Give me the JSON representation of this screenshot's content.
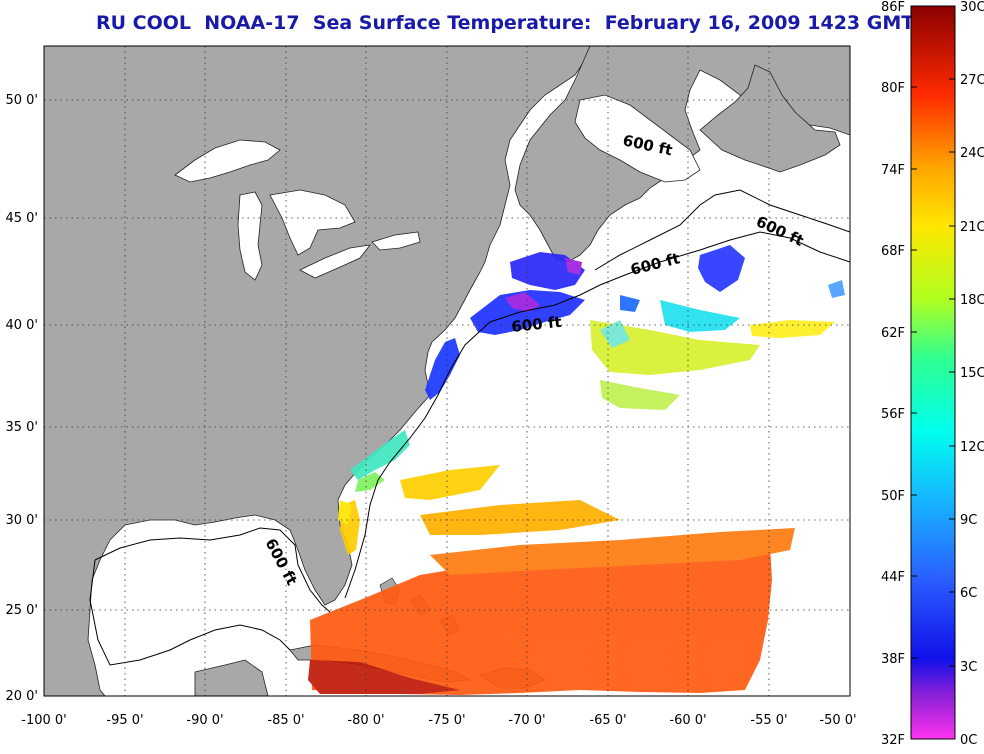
{
  "title": "RU COOL  NOAA-17  Sea Surface Temperature:  February 16, 2009 1423 GMT",
  "axes": {
    "lon_labels": [
      "-100 0'",
      "-95 0'",
      "-90 0'",
      "-85 0'",
      "-80 0'",
      "-75 0'",
      "-70 0'",
      "-65 0'",
      "-60 0'",
      "-55 0'",
      "-50 0'"
    ],
    "lat_labels": [
      "20 0'",
      "25 0'",
      "30 0'",
      "35 0'",
      "40 0'",
      "45 0'",
      "50 0'"
    ]
  },
  "contour_labels": [
    "600 ft",
    "600 ft",
    "600 ft",
    "600 ft",
    "600 ft"
  ],
  "colorbar": {
    "fahrenheit": [
      "86F",
      "80F",
      "74F",
      "68F",
      "62F",
      "56F",
      "50F",
      "44F",
      "38F",
      "32F"
    ],
    "celsius": [
      "30C",
      "27C",
      "24C",
      "21C",
      "18C",
      "15C",
      "12C",
      "9C",
      "6C",
      "3C",
      "0C"
    ]
  },
  "colors": {
    "land": "#a8a8a8",
    "ocean": "#ffffff",
    "title": "#1a1aa8"
  }
}
